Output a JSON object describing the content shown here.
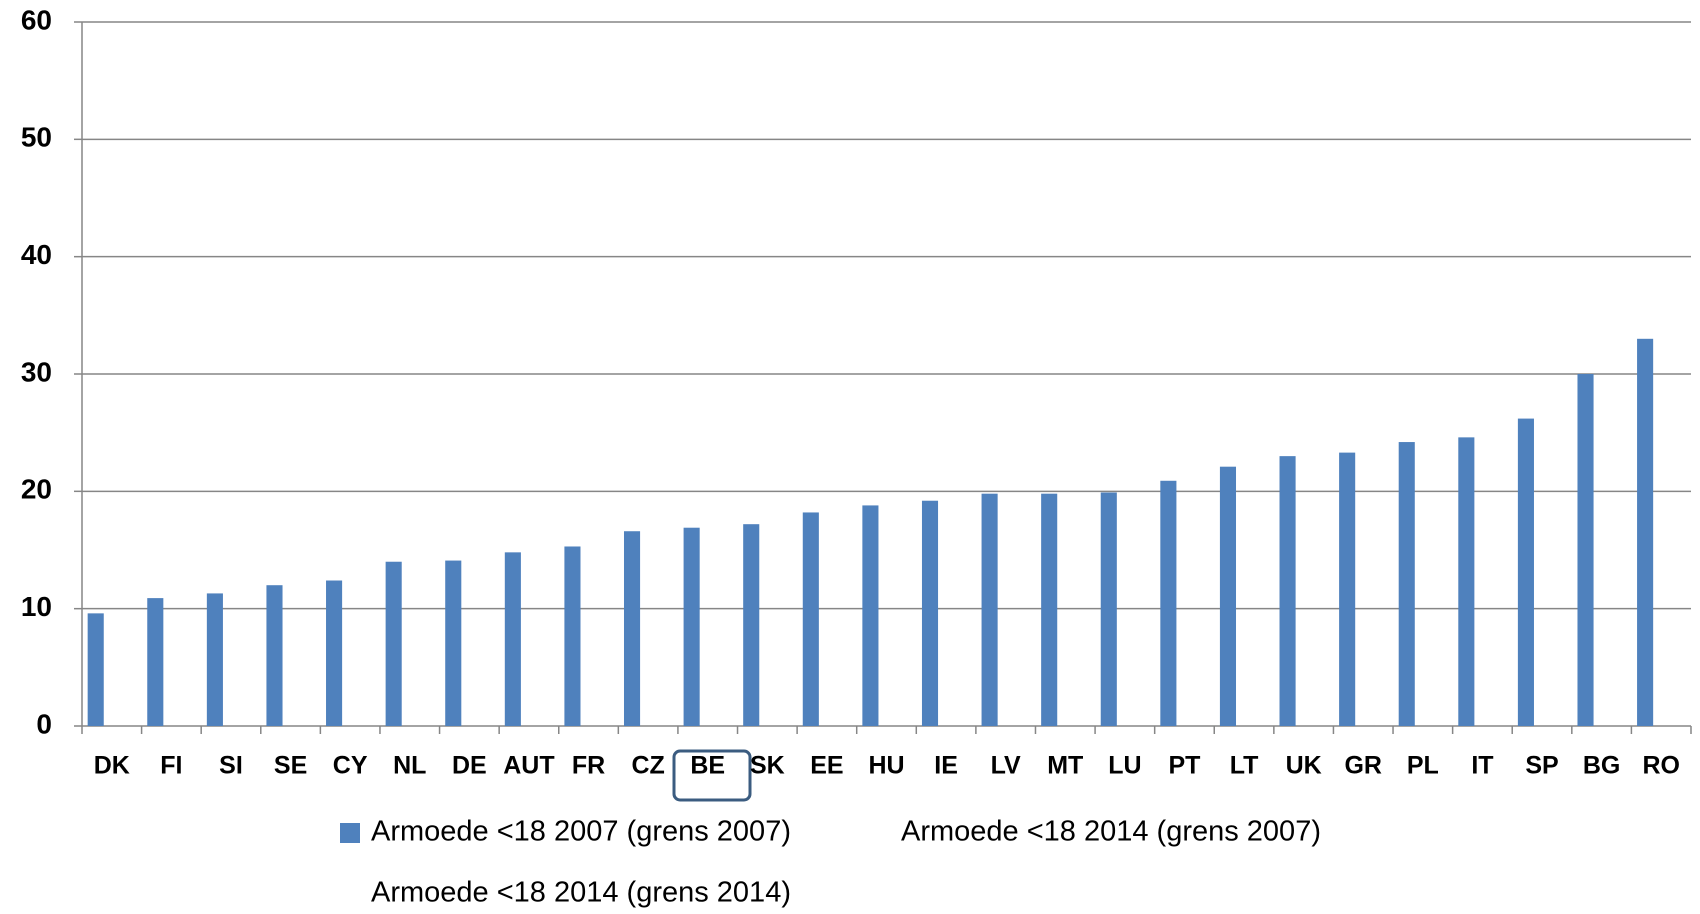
{
  "chart_data": {
    "type": "bar",
    "categories": [
      "DK",
      "FI",
      "SI",
      "SE",
      "CY",
      "NL",
      "DE",
      "AUT",
      "FR",
      "CZ",
      "BE",
      "SK",
      "EE",
      "HU",
      "IE",
      "LV",
      "MT",
      "LU",
      "PT",
      "LT",
      "UK",
      "GR",
      "PL",
      "IT",
      "SP",
      "BG",
      "RO"
    ],
    "series": [
      {
        "name": "Armoede <18 2007 (grens 2007)",
        "color": "#4f81bd",
        "values": [
          9.6,
          10.9,
          11.3,
          12.0,
          12.4,
          14.0,
          14.1,
          14.8,
          15.3,
          16.6,
          16.9,
          17.2,
          18.2,
          18.8,
          19.2,
          19.8,
          19.8,
          19.9,
          20.9,
          22.1,
          23.0,
          23.3,
          24.2,
          24.6,
          26.2,
          30.0,
          33.0
        ]
      },
      {
        "name": "Armoede <18 2014 (grens 2007)",
        "values": [
          null,
          null,
          null,
          null,
          null,
          null,
          null,
          null,
          null,
          null,
          null,
          null,
          null,
          null,
          null,
          null,
          null,
          null,
          null,
          null,
          null,
          null,
          null,
          null,
          null,
          null,
          null
        ]
      },
      {
        "name": "Armoede <18 2014 (grens 2014)",
        "values": [
          null,
          null,
          null,
          null,
          null,
          null,
          null,
          null,
          null,
          null,
          null,
          null,
          null,
          null,
          null,
          null,
          null,
          null,
          null,
          null,
          null,
          null,
          null,
          null,
          null,
          null,
          null
        ]
      }
    ],
    "ylim": [
      0,
      60
    ],
    "yticks": [
      0,
      10,
      20,
      30,
      40,
      50,
      60
    ],
    "grid": true
  }
}
